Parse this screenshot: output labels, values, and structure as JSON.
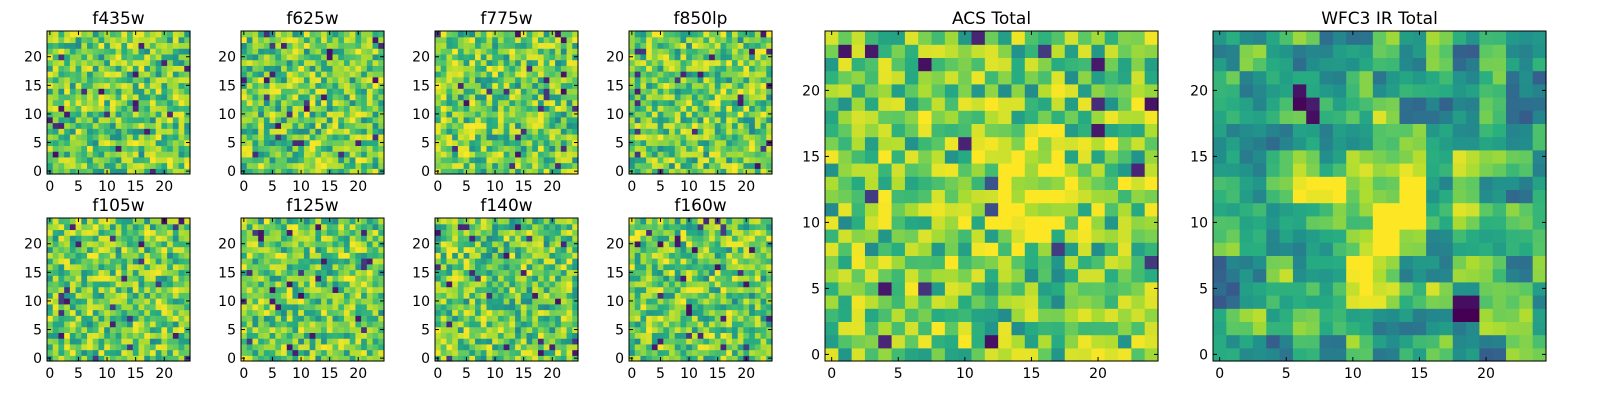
{
  "figure": {
    "colormap": "viridis",
    "colors": {
      "background": "#ffffff",
      "axes": "#000000",
      "viridis_low": "#440154",
      "viridis_mid": "#21918c",
      "viridis_high": "#fde725"
    }
  },
  "chart_data": [
    {
      "type": "heatmap",
      "title": "f435w",
      "grid_size": 25,
      "xlim": [
        -0.5,
        24.5
      ],
      "ylim": [
        -0.5,
        24.5
      ],
      "xticks": [
        0,
        5,
        10,
        15,
        20
      ],
      "yticks": [
        0,
        5,
        10,
        15,
        20
      ],
      "xlabel": "",
      "ylabel": "",
      "colormap": "viridis",
      "pixel_size": 1,
      "value_range": [
        0,
        1
      ],
      "seed": 101,
      "blobs": [],
      "hot_spots": []
    },
    {
      "type": "heatmap",
      "title": "f625w",
      "grid_size": 25,
      "xlim": [
        -0.5,
        24.5
      ],
      "ylim": [
        -0.5,
        24.5
      ],
      "xticks": [
        0,
        5,
        10,
        15,
        20
      ],
      "yticks": [
        0,
        5,
        10,
        15,
        20
      ],
      "xlabel": "",
      "ylabel": "",
      "colormap": "viridis",
      "pixel_size": 1,
      "value_range": [
        0,
        1
      ],
      "seed": 202,
      "blobs": [],
      "hot_spots": []
    },
    {
      "type": "heatmap",
      "title": "f775w",
      "grid_size": 25,
      "xlim": [
        -0.5,
        24.5
      ],
      "ylim": [
        -0.5,
        24.5
      ],
      "xticks": [
        0,
        5,
        10,
        15,
        20
      ],
      "yticks": [
        0,
        5,
        10,
        15,
        20
      ],
      "xlabel": "",
      "ylabel": "",
      "colormap": "viridis",
      "pixel_size": 1,
      "value_range": [
        0,
        1
      ],
      "seed": 303,
      "blobs": [],
      "hot_spots": []
    },
    {
      "type": "heatmap",
      "title": "f850lp",
      "grid_size": 25,
      "xlim": [
        -0.5,
        24.5
      ],
      "ylim": [
        -0.5,
        24.5
      ],
      "xticks": [
        0,
        5,
        10,
        15,
        20
      ],
      "yticks": [
        0,
        5,
        10,
        15,
        20
      ],
      "xlabel": "",
      "ylabel": "",
      "colormap": "viridis",
      "pixel_size": 1,
      "value_range": [
        0,
        1
      ],
      "seed": 404,
      "blobs": [],
      "hot_spots": []
    },
    {
      "type": "heatmap",
      "title": "f105w",
      "grid_size": 25,
      "xlim": [
        -0.5,
        24.5
      ],
      "ylim": [
        -0.5,
        24.5
      ],
      "xticks": [
        0,
        5,
        10,
        15,
        20
      ],
      "yticks": [
        0,
        5,
        10,
        15,
        20
      ],
      "xlabel": "",
      "ylabel": "",
      "colormap": "viridis",
      "pixel_size": 1,
      "value_range": [
        0,
        1
      ],
      "seed": 505,
      "blobs": [],
      "hot_spots": []
    },
    {
      "type": "heatmap",
      "title": "f125w",
      "grid_size": 25,
      "xlim": [
        -0.5,
        24.5
      ],
      "ylim": [
        -0.5,
        24.5
      ],
      "xticks": [
        0,
        5,
        10,
        15,
        20
      ],
      "yticks": [
        0,
        5,
        10,
        15,
        20
      ],
      "xlabel": "",
      "ylabel": "",
      "colormap": "viridis",
      "pixel_size": 1,
      "value_range": [
        0,
        1
      ],
      "seed": 606,
      "blobs": [],
      "hot_spots": []
    },
    {
      "type": "heatmap",
      "title": "f140w",
      "grid_size": 25,
      "xlim": [
        -0.5,
        24.5
      ],
      "ylim": [
        -0.5,
        24.5
      ],
      "xticks": [
        0,
        5,
        10,
        15,
        20
      ],
      "yticks": [
        0,
        5,
        10,
        15,
        20
      ],
      "xlabel": "",
      "ylabel": "",
      "colormap": "viridis",
      "pixel_size": 1,
      "value_range": [
        0,
        1
      ],
      "seed": 707,
      "blobs": [],
      "hot_spots": []
    },
    {
      "type": "heatmap",
      "title": "f160w",
      "grid_size": 25,
      "xlim": [
        -0.5,
        24.5
      ],
      "ylim": [
        -0.5,
        24.5
      ],
      "xticks": [
        0,
        5,
        10,
        15,
        20
      ],
      "yticks": [
        0,
        5,
        10,
        15,
        20
      ],
      "xlabel": "",
      "ylabel": "",
      "colormap": "viridis",
      "pixel_size": 1,
      "value_range": [
        0,
        1
      ],
      "seed": 808,
      "blobs": [],
      "hot_spots": []
    },
    {
      "type": "heatmap",
      "title": "ACS Total",
      "grid_size": 25,
      "xlim": [
        -0.5,
        24.5
      ],
      "ylim": [
        -0.5,
        24.5
      ],
      "xticks": [
        0,
        5,
        10,
        15,
        20
      ],
      "yticks": [
        0,
        5,
        10,
        15,
        20
      ],
      "xlabel": "",
      "ylabel": "",
      "colormap": "viridis",
      "pixel_size": 1,
      "value_range": [
        0,
        1
      ],
      "seed": 909,
      "blobs": [
        {
          "x": 15,
          "y": 12.5,
          "radius": 3,
          "amplitude": 0.25
        }
      ],
      "hot_spots": []
    },
    {
      "type": "heatmap",
      "title": "WFC3 IR Total",
      "grid_size": 25,
      "xlim": [
        -0.5,
        24.5
      ],
      "ylim": [
        -0.5,
        24.5
      ],
      "xticks": [
        0,
        5,
        10,
        15,
        20
      ],
      "yticks": [
        0,
        5,
        10,
        15,
        20
      ],
      "xlabel": "",
      "ylabel": "",
      "colormap": "viridis",
      "pixel_size": 2,
      "value_range": [
        0,
        1
      ],
      "seed": 1010,
      "blobs": [
        {
          "x": 12,
          "y": 11.5,
          "radius": 4,
          "amplitude": 0.35
        },
        {
          "x": 10,
          "y": 5,
          "radius": 2,
          "amplitude": 0.2
        }
      ],
      "hot_spots": [
        {
          "x": 18,
          "y": 2.5,
          "value": 0.0
        },
        {
          "x": 19,
          "y": 2.5,
          "value": 0.0
        },
        {
          "x": 6,
          "y": 18.5,
          "value": 0.02
        },
        {
          "x": 7,
          "y": 18,
          "value": 0.05
        }
      ]
    }
  ]
}
